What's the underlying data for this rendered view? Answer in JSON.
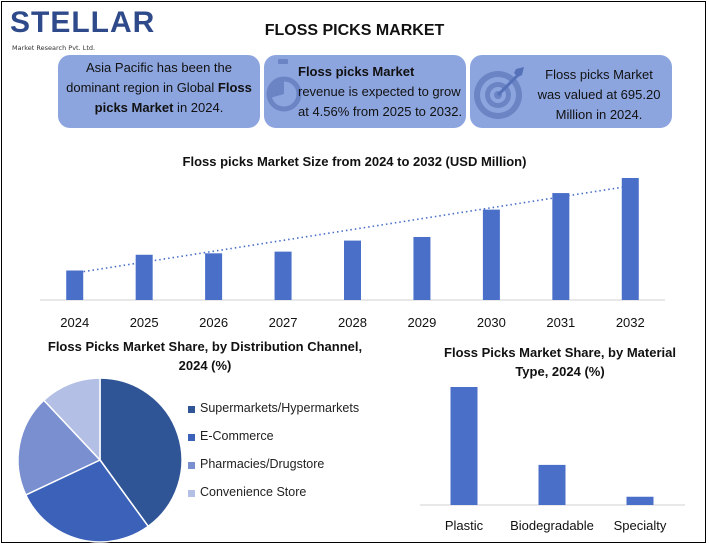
{
  "logo": {
    "word": "STELLAR",
    "sub": "Market Research Pvt. Ltd."
  },
  "title": "FLOSS PICKS MARKET",
  "cards": [
    {
      "icon": "globe-icon",
      "text_parts": [
        {
          "t": "Asia Pacific has been the dominant region in Global ",
          "b": false
        },
        {
          "t": "Floss picks Market",
          "b": true
        },
        {
          "t": " in 2024.",
          "b": false
        }
      ]
    },
    {
      "icon": "stopwatch-icon",
      "text_parts": [
        {
          "t": "Floss picks Market",
          "b": true
        },
        {
          "t": " revenue is expected to grow at 4.56% from 2025 to 2032.",
          "b": false
        }
      ]
    },
    {
      "icon": "target-icon",
      "text_parts": [
        {
          "t": "Floss picks Market was valued at 695.20 Million in 2024.",
          "b": false
        }
      ]
    }
  ],
  "colors": {
    "bar": "#4a6fc9",
    "card": "#8da5df",
    "trend": "#4a6fc9",
    "brand": "#2e4a8a"
  },
  "chart_data": [
    {
      "type": "bar",
      "title": "Floss picks Market Size from 2024 to 2032 (USD Million)",
      "categories": [
        "2024",
        "2025",
        "2026",
        "2027",
        "2028",
        "2029",
        "2030",
        "2031",
        "2032"
      ],
      "values": [
        695.2,
        1066,
        1100,
        1140,
        1400,
        1485,
        2130,
        2520,
        2875
      ],
      "ylim": [
        0,
        2875
      ],
      "trendline": true,
      "grid": false
    },
    {
      "type": "pie",
      "title": "Floss Picks Market Share, by Distribution Channel, 2024 (%)",
      "labels": [
        "Supermarkets/Hypermarkets",
        "E-Commerce",
        "Pharmacies/Drugstore",
        "Convenience Store"
      ],
      "values": [
        40,
        28,
        20,
        12
      ],
      "colors": [
        "#2f5597",
        "#3b62b8",
        "#7a8fd0",
        "#b4bfe5"
      ],
      "legend": "right"
    },
    {
      "type": "bar",
      "title": "Floss Picks Market Share, by Material Type, 2024 (%)",
      "categories": [
        "Plastic",
        "Biodegradable",
        "Specialty"
      ],
      "values": [
        100,
        34,
        7
      ],
      "ylim": [
        0,
        100
      ]
    }
  ]
}
